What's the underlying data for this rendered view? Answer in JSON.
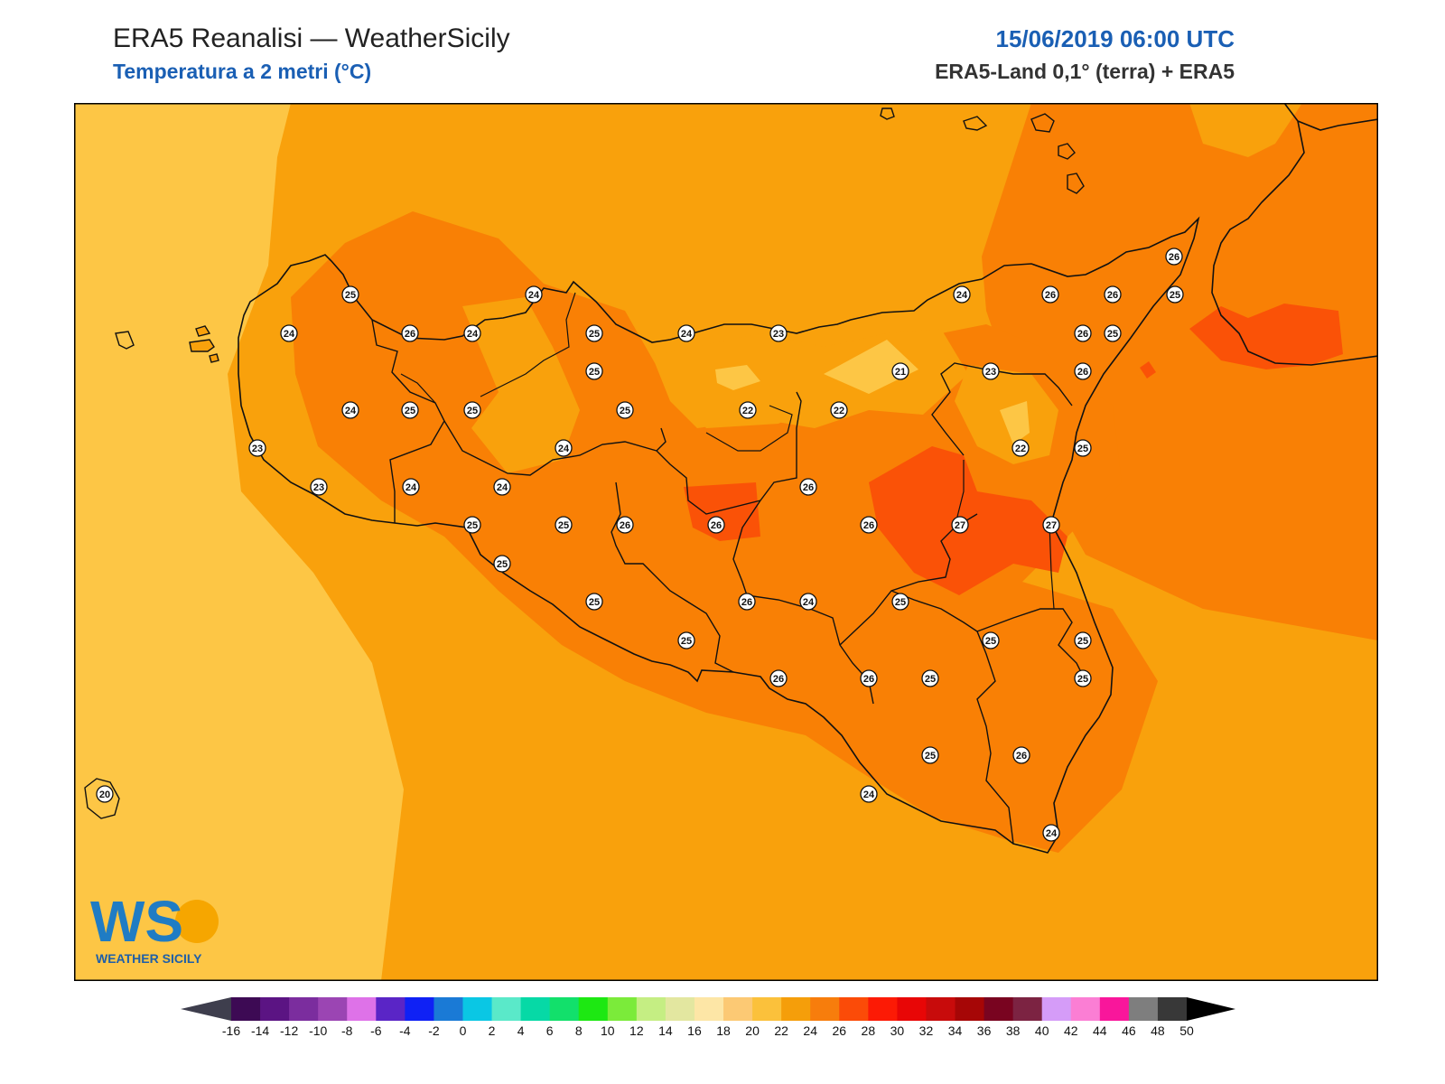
{
  "header": {
    "title": "ERA5 Reanalisi — WeatherSicily",
    "subtitle": "Temperatura a 2 metri (°C)",
    "datetime": "15/06/2019 06:00 UTC",
    "source": "ERA5-Land 0,1° (terra) + ERA5"
  },
  "logo": {
    "letters": "WS",
    "name": "WEATHER SICILY"
  },
  "stations": [
    {
      "v": "25"
    },
    {
      "v": "24"
    },
    {
      "v": "24"
    },
    {
      "v": "26"
    },
    {
      "v": "24"
    },
    {
      "v": "25"
    },
    {
      "v": "24"
    },
    {
      "v": "23"
    },
    {
      "v": "23"
    },
    {
      "v": "21"
    },
    {
      "v": "24"
    },
    {
      "v": "26"
    },
    {
      "v": "26"
    },
    {
      "v": "25"
    },
    {
      "v": "26"
    },
    {
      "v": "25"
    },
    {
      "v": "24"
    },
    {
      "v": "25"
    },
    {
      "v": "25"
    },
    {
      "v": "25"
    },
    {
      "v": "22"
    },
    {
      "v": "22"
    },
    {
      "v": "23"
    },
    {
      "v": "26"
    },
    {
      "v": "23"
    },
    {
      "v": "24"
    },
    {
      "v": "25"
    },
    {
      "v": "26"
    },
    {
      "v": "22"
    },
    {
      "v": "25"
    },
    {
      "v": "24"
    },
    {
      "v": "26"
    },
    {
      "v": "24"
    },
    {
      "v": "25"
    },
    {
      "v": "25"
    },
    {
      "v": "26"
    },
    {
      "v": "26"
    },
    {
      "v": "27"
    },
    {
      "v": "27"
    },
    {
      "v": "25"
    },
    {
      "v": "25"
    },
    {
      "v": "26"
    },
    {
      "v": "24"
    },
    {
      "v": "25"
    },
    {
      "v": "26"
    },
    {
      "v": "25"
    },
    {
      "v": "25"
    },
    {
      "v": "25"
    },
    {
      "v": "26"
    },
    {
      "v": "26"
    },
    {
      "v": "25"
    },
    {
      "v": "25"
    },
    {
      "v": "25"
    },
    {
      "v": "26"
    },
    {
      "v": "24"
    },
    {
      "v": "24"
    },
    {
      "v": "20"
    }
  ],
  "legend": {
    "labels": [
      "-16",
      "-14",
      "-12",
      "-10",
      "-8",
      "-6",
      "-4",
      "-2",
      "0",
      "2",
      "4",
      "6",
      "8",
      "10",
      "12",
      "14",
      "16",
      "18",
      "20",
      "22",
      "24",
      "26",
      "28",
      "30",
      "32",
      "34",
      "36",
      "38",
      "40",
      "42",
      "44",
      "46",
      "48",
      "50"
    ],
    "colors": [
      "#3d0a54",
      "#5b1483",
      "#7b2d9e",
      "#9b45b3",
      "#de72e8",
      "#5a25c6",
      "#0f21f5",
      "#1a7ad6",
      "#0ac7e4",
      "#5ae9c9",
      "#06d9a6",
      "#12e06b",
      "#1de812",
      "#7beb3a",
      "#c5ee83",
      "#e3e7a0",
      "#fde6a6",
      "#fcc974",
      "#fbc13b",
      "#f59e0a",
      "#f77d0c",
      "#fb4b08",
      "#fc1a05",
      "#e80606",
      "#c80b0b",
      "#a60606",
      "#790420",
      "#7c2342",
      "#d59cf8",
      "#fb7ed4",
      "#f9169b",
      "#7e7e7e",
      "#383838"
    ],
    "under_color": "#3e3e4d",
    "over_color": "#000000"
  },
  "colors": {
    "sea_light": "#fdc645",
    "sea_mid": "#f9a10c",
    "warm": "#f98005",
    "hot": "#fa5207",
    "cool_land": "#fdbf3c"
  }
}
